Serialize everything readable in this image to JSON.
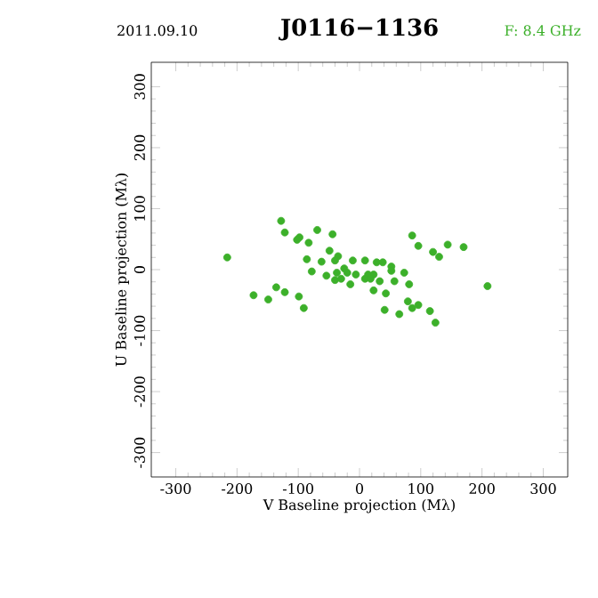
{
  "chart_data": {
    "type": "scatter",
    "title": "J0116−1136",
    "annotations": [
      "2011.09.10",
      "F: 8.4 GHz"
    ],
    "xlabel": "V Baseline projection (Mλ)",
    "ylabel": "U Baseline projection (Mλ)",
    "x": [
      -128,
      -122,
      -98,
      -102,
      -83,
      -69,
      -44,
      -216,
      -86,
      -78,
      -62,
      -49,
      -35,
      -40,
      -11,
      -25,
      -20,
      -54,
      -40,
      -30,
      -15,
      -6,
      9,
      14,
      23,
      28,
      38,
      52,
      52,
      9,
      18,
      33,
      23,
      43,
      57,
      73,
      81,
      86,
      96,
      120,
      130,
      144,
      170,
      209,
      79,
      96,
      86,
      115,
      124,
      65,
      41,
      -91,
      -99,
      -122,
      -136,
      -149,
      -173,
      -37
    ],
    "values": [
      80,
      61,
      53,
      49,
      44,
      65,
      58,
      20,
      17,
      -3,
      13,
      31,
      22,
      15,
      15,
      2,
      -5,
      -10,
      -17,
      -15,
      -24,
      -8,
      15,
      -8,
      -8,
      12,
      12,
      5,
      -2,
      -15,
      -15,
      -19,
      -34,
      -39,
      -19,
      -5,
      -24,
      56,
      39,
      29,
      21,
      41,
      37,
      -27,
      -52,
      -58,
      -63,
      -68,
      -87,
      -73,
      -66,
      -63,
      -44,
      -37,
      -29,
      -49,
      -42,
      -5
    ],
    "color": "#3cb02a",
    "marker": "circle",
    "xlim": [
      -340,
      340
    ],
    "ylim": [
      -340,
      340
    ],
    "xticks": [
      -300,
      -200,
      -100,
      0,
      100,
      200,
      300
    ],
    "yticks": [
      -300,
      -200,
      -100,
      0,
      100,
      200,
      300
    ]
  }
}
